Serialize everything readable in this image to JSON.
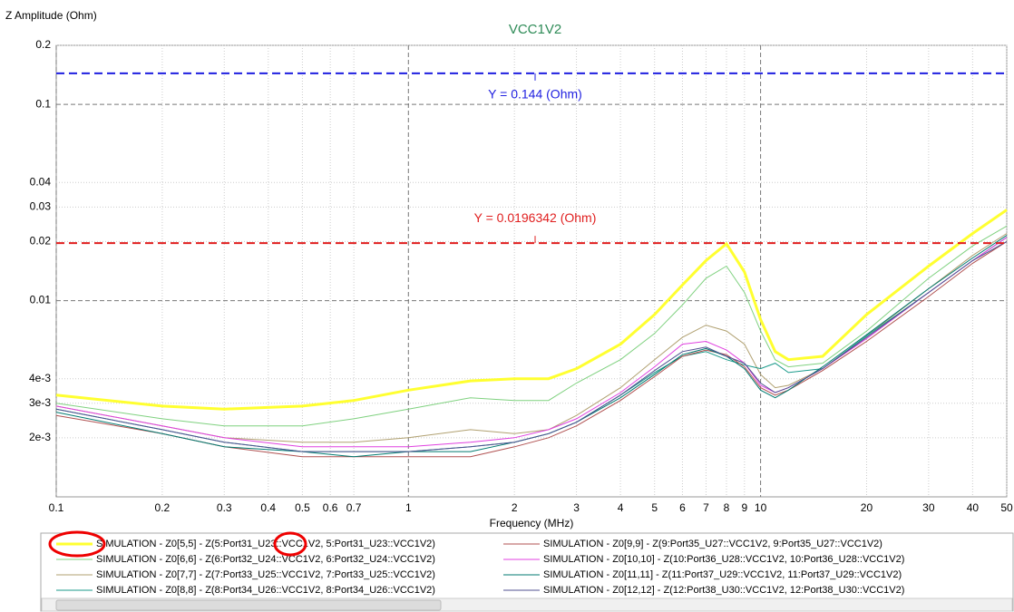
{
  "chart_data": {
    "type": "line",
    "title": "VCC1V2",
    "y_label": "Z Amplitude (Ohm)",
    "x_label": "Frequency (MHz)",
    "log_x": true,
    "log_y": true,
    "grid": true,
    "xlim": [
      0.1,
      50
    ],
    "ylim": [
      0.001,
      0.2
    ],
    "xticks": [
      0.1,
      0.2,
      0.3,
      0.4,
      0.5,
      0.6,
      0.7,
      1,
      2,
      3,
      4,
      5,
      6,
      7,
      8,
      9,
      10,
      20,
      30,
      40,
      50
    ],
    "yticks": [
      0.2,
      0.1,
      0.04,
      0.03,
      0.02,
      0.01,
      {
        "value": 0.004,
        "label": "4e-3"
      },
      {
        "value": 0.003,
        "label": "3e-3"
      },
      {
        "value": 0.002,
        "label": "2e-3"
      }
    ],
    "markers": [
      {
        "value": 0.144,
        "label": "Y = 0.144 (Ohm)",
        "color": "#1f1fe0"
      },
      {
        "value": 0.0196342,
        "label": "Y = 0.0196342 (Ohm)",
        "color": "#e01f1f"
      }
    ],
    "x": [
      0.1,
      0.2,
      0.3,
      0.5,
      0.7,
      1,
      1.5,
      2,
      2.5,
      3,
      4,
      5,
      6,
      7,
      8,
      9,
      10,
      11,
      12,
      15,
      20,
      30,
      40,
      50
    ],
    "series": [
      {
        "name": "SIMULATION - Z0[5,5] - Z(5:Port31_U23::VCC1V2, 5:Port31_U23::VCC1V2)",
        "color": "#ffff30",
        "width": 3,
        "values": [
          0.0033,
          0.0029,
          0.0028,
          0.0029,
          0.0031,
          0.0035,
          0.0039,
          0.004,
          0.004,
          0.0045,
          0.006,
          0.0085,
          0.012,
          0.016,
          0.0195,
          0.014,
          0.008,
          0.0055,
          0.005,
          0.0052,
          0.0085,
          0.015,
          0.022,
          0.029
        ]
      },
      {
        "name": "SIMULATION - Z0[6,6] - Z(6:Port32_U24::VCC1V2, 6:Port32_U24::VCC1V2)",
        "color": "#7fd17f",
        "width": 1,
        "values": [
          0.003,
          0.0025,
          0.0023,
          0.0023,
          0.0025,
          0.0028,
          0.0032,
          0.0031,
          0.0031,
          0.0038,
          0.005,
          0.0068,
          0.0095,
          0.013,
          0.015,
          0.011,
          0.007,
          0.005,
          0.0046,
          0.0048,
          0.007,
          0.013,
          0.019,
          0.024
        ]
      },
      {
        "name": "SIMULATION - Z0[7,7] - Z(7:Port33_U25::VCC1V2, 7:Port33_U25::VCC1V2)",
        "color": "#b0a070",
        "width": 1,
        "values": [
          0.0029,
          0.0023,
          0.002,
          0.0019,
          0.0019,
          0.002,
          0.0022,
          0.0021,
          0.0022,
          0.0026,
          0.0036,
          0.005,
          0.0065,
          0.0075,
          0.007,
          0.006,
          0.0042,
          0.0036,
          0.0037,
          0.0045,
          0.0066,
          0.0115,
          0.017,
          0.022
        ]
      },
      {
        "name": "SIMULATION - Z0[8,8] - Z(8:Port34_U26::VCC1V2, 8:Port34_U26::VCC1V2)",
        "color": "#1a9a8a",
        "width": 1,
        "values": [
          0.0028,
          0.0022,
          0.0019,
          0.0017,
          0.0017,
          0.0017,
          0.0018,
          0.0019,
          0.0021,
          0.0024,
          0.0033,
          0.0043,
          0.0052,
          0.0055,
          0.005,
          0.0047,
          0.0045,
          0.0048,
          0.0043,
          0.0045,
          0.0066,
          0.011,
          0.016,
          0.021
        ]
      },
      {
        "name": "SIMULATION - Z0[9,9] - Z(9:Port35_U27::VCC1V2, 9:Port35_U27::VCC1V2)",
        "color": "#b05050",
        "width": 1,
        "values": [
          0.0026,
          0.0021,
          0.0018,
          0.0016,
          0.0016,
          0.0016,
          0.0016,
          0.0018,
          0.002,
          0.0023,
          0.0031,
          0.0041,
          0.0052,
          0.0056,
          0.0053,
          0.0046,
          0.0036,
          0.0033,
          0.0035,
          0.0044,
          0.0062,
          0.0105,
          0.0155,
          0.02
        ]
      },
      {
        "name": "SIMULATION - Z0[10,10] - Z(10:Port36_U28::VCC1V2, 10:Port36_U28::VCC1V2)",
        "color": "#e040e0",
        "width": 1,
        "values": [
          0.0029,
          0.0023,
          0.002,
          0.0018,
          0.0018,
          0.0018,
          0.0019,
          0.002,
          0.0022,
          0.0025,
          0.0034,
          0.0046,
          0.006,
          0.0062,
          0.0056,
          0.0048,
          0.0037,
          0.0034,
          0.0036,
          0.0045,
          0.0064,
          0.011,
          0.016,
          0.021
        ]
      },
      {
        "name": "SIMULATION - Z0[11,11] - Z(11:Port37_U29::VCC1V2, 11:Port37_U29::VCC1V2)",
        "color": "#007a70",
        "width": 1,
        "values": [
          0.0027,
          0.0021,
          0.0018,
          0.0017,
          0.0016,
          0.0017,
          0.0017,
          0.0019,
          0.0021,
          0.0024,
          0.0032,
          0.0042,
          0.0053,
          0.0057,
          0.0052,
          0.0045,
          0.0035,
          0.0032,
          0.0035,
          0.0046,
          0.0067,
          0.0115,
          0.0165,
          0.0215
        ]
      },
      {
        "name": "SIMULATION - Z0[12,12] - Z(12:Port38_U30::VCC1V2, 12:Port38_U30::VCC1V2)",
        "color": "#505090",
        "width": 1,
        "values": [
          0.0028,
          0.0022,
          0.0019,
          0.0017,
          0.0017,
          0.0017,
          0.0018,
          0.0019,
          0.0021,
          0.0024,
          0.0033,
          0.0044,
          0.0055,
          0.0058,
          0.0052,
          0.0048,
          0.0038,
          0.0034,
          0.0036,
          0.0045,
          0.0065,
          0.011,
          0.016,
          0.02
        ]
      }
    ]
  }
}
